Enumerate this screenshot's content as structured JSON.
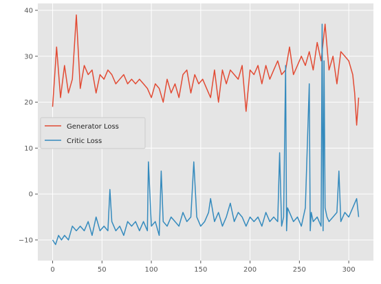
{
  "chart_data": {
    "type": "line",
    "title": "",
    "xlabel": "",
    "ylabel": "",
    "xlim": [
      -15,
      325
    ],
    "ylim": [
      -14.5,
      41.5
    ],
    "xticks": [
      0,
      50,
      100,
      150,
      200,
      250,
      300
    ],
    "yticks": [
      -10,
      0,
      10,
      20,
      30,
      40
    ],
    "grid": true,
    "legend_position": "center-left",
    "series": [
      {
        "name": "Generator Loss",
        "color": "#E24A33",
        "x": [
          0,
          4,
          8,
          12,
          16,
          20,
          24,
          28,
          32,
          36,
          40,
          44,
          48,
          52,
          56,
          60,
          64,
          68,
          72,
          76,
          80,
          84,
          88,
          92,
          96,
          100,
          104,
          108,
          112,
          116,
          120,
          124,
          128,
          132,
          136,
          140,
          144,
          148,
          152,
          156,
          160,
          164,
          168,
          172,
          176,
          180,
          184,
          188,
          192,
          196,
          200,
          204,
          208,
          212,
          216,
          220,
          224,
          228,
          232,
          236,
          240,
          244,
          248,
          252,
          256,
          260,
          264,
          268,
          272,
          276,
          280,
          284,
          288,
          292,
          296,
          300,
          304,
          306,
          308,
          310
        ],
        "y": [
          19,
          32,
          21,
          28,
          22,
          25,
          39,
          23,
          28,
          26,
          27,
          22,
          26,
          25,
          27,
          26,
          24,
          25,
          26,
          24,
          25,
          24,
          25,
          24,
          23,
          21,
          24,
          23,
          20,
          25,
          22,
          24,
          21,
          26,
          27,
          22,
          26,
          24,
          25,
          23,
          21,
          27,
          20,
          27,
          24,
          27,
          26,
          25,
          28,
          18,
          27,
          26,
          28,
          24,
          28,
          25,
          27,
          29,
          26,
          27,
          32,
          26,
          28,
          30,
          28,
          31,
          27,
          33,
          29,
          37,
          27,
          30,
          24,
          31,
          30,
          29,
          26,
          22,
          15,
          21
        ]
      },
      {
        "name": "Critic Loss",
        "color": "#348ABD",
        "x": [
          0,
          3,
          6,
          9,
          12,
          16,
          20,
          24,
          28,
          32,
          36,
          40,
          44,
          48,
          52,
          56,
          58,
          60,
          64,
          68,
          72,
          76,
          80,
          84,
          88,
          92,
          96,
          97,
          100,
          104,
          108,
          110,
          112,
          116,
          120,
          124,
          128,
          132,
          136,
          140,
          143,
          146,
          150,
          154,
          158,
          160,
          164,
          168,
          172,
          176,
          180,
          184,
          188,
          192,
          196,
          200,
          204,
          208,
          212,
          216,
          220,
          224,
          228,
          230,
          232,
          234,
          236,
          237,
          238,
          240,
          244,
          248,
          252,
          256,
          260,
          261,
          262,
          264,
          268,
          272,
          273,
          274,
          275,
          276,
          278,
          280,
          284,
          288,
          290,
          292,
          296,
          300,
          304,
          308,
          310
        ],
        "y": [
          -10,
          -11,
          -9,
          -10,
          -9,
          -10,
          -7,
          -8,
          -7,
          -8,
          -6,
          -9,
          -5,
          -8,
          -7,
          -8,
          1,
          -6,
          -8,
          -7,
          -9,
          -6,
          -7,
          -6,
          -8,
          -6,
          -8,
          7,
          -7,
          -6,
          -9,
          5,
          -6,
          -7,
          -5,
          -6,
          -7,
          -4,
          -6,
          -5,
          7,
          -5,
          -7,
          -6,
          -4,
          -1,
          -6,
          -4,
          -7,
          -5,
          -2,
          -6,
          -4,
          -5,
          -7,
          -5,
          -6,
          -5,
          -7,
          -4,
          -6,
          -5,
          -6,
          9,
          -7,
          -5,
          28,
          -8,
          -3,
          -4,
          -6,
          -5,
          -7,
          -3,
          24,
          -8,
          -4,
          -6,
          -5,
          -7,
          37,
          -8,
          29,
          -3,
          -5,
          -6,
          -5,
          -4,
          5,
          -6,
          -4,
          -5,
          -3,
          -1,
          -5
        ]
      }
    ]
  }
}
